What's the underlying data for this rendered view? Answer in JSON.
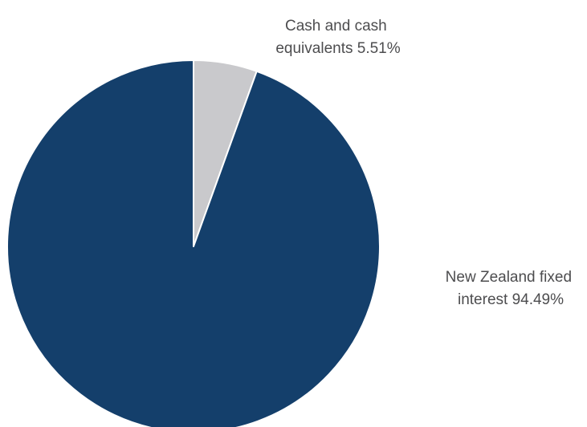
{
  "chart_data": {
    "type": "pie",
    "title": "",
    "start_angle_deg": 0,
    "direction": "clockwise",
    "slices": [
      {
        "label_lines": [
          "Cash and cash",
          "equivalents 5.51%"
        ],
        "value": 5.51,
        "color": "#c9c9cc"
      },
      {
        "label_lines": [
          "New Zealand fixed",
          "interest 94.49%"
        ],
        "value": 94.49,
        "color": "#143f6b"
      }
    ],
    "slice_border_color": "#ffffff"
  }
}
